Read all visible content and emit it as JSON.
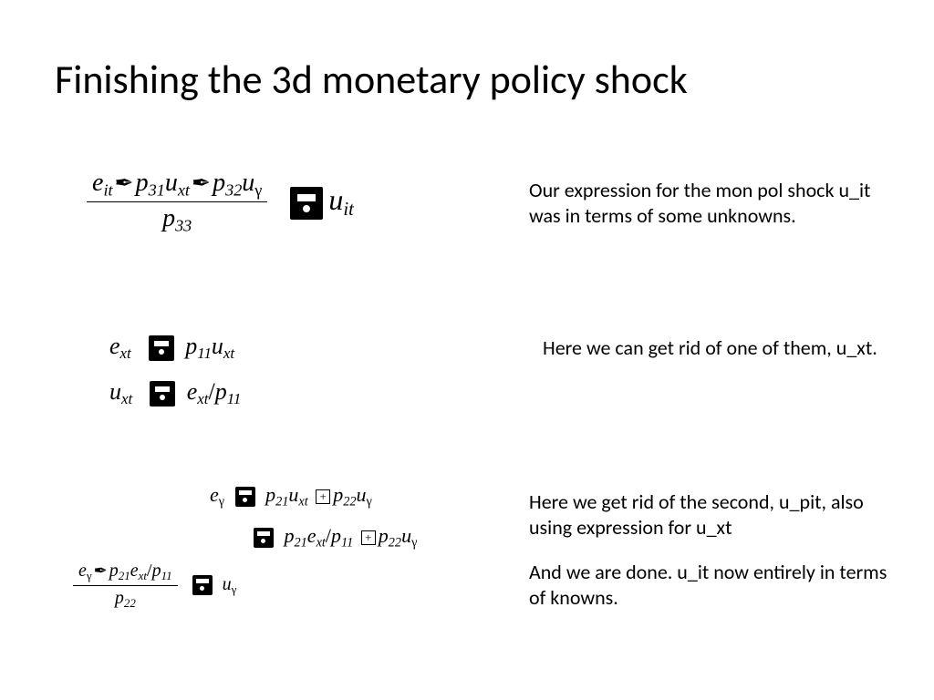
{
  "title": "Finishing the 3d monetary policy shock",
  "colors": {
    "bg": "#ffffff",
    "text": "#000000"
  },
  "fonts": {
    "title_size": 44,
    "body_size": 22,
    "math_main": 28,
    "math_small": 22
  },
  "eq1": {
    "num_parts": {
      "a": "e",
      "a_sub": "it",
      "b": "p",
      "b_sub": "31",
      "c": "u",
      "c_sub": "xt",
      "d": "p",
      "d_sub": "32",
      "e": "u"
    },
    "den": {
      "v": "p",
      "sub": "33"
    },
    "rhs": {
      "v": "u",
      "sub": "it"
    }
  },
  "text1": "Our expression for the mon pol shock u_it was in terms of some unknowns.",
  "eq2a": {
    "lhs": {
      "v": "e",
      "sub": "xt"
    },
    "rhs1": {
      "v": "p",
      "sub": "11"
    },
    "rhs2": {
      "v": "u",
      "sub": "xt"
    }
  },
  "eq2b": {
    "lhs": {
      "v": "u",
      "sub": "xt"
    },
    "rhs1": {
      "v": "e",
      "sub": "xt"
    },
    "rhs2": {
      "v": "p",
      "sub": "11"
    }
  },
  "text2": "Here we can get rid of one of them, u_xt.",
  "eq3a": {
    "lhs": {
      "v": "e"
    },
    "t1": {
      "v": "p",
      "sub": "21"
    },
    "t2": {
      "v": "u",
      "sub": "xt"
    },
    "t3": {
      "v": "p",
      "sub": "22"
    },
    "t4": {
      "v": "u"
    }
  },
  "eq3b": {
    "t1": {
      "v": "p",
      "sub": "21"
    },
    "t2": {
      "v": "e",
      "sub": "xt"
    },
    "t3": {
      "v": "p",
      "sub": "11"
    },
    "t4": {
      "v": "p",
      "sub": "22"
    },
    "t5": {
      "v": "u"
    }
  },
  "eq3c": {
    "num": {
      "a": {
        "v": "e"
      },
      "b": {
        "v": "p",
        "sub": "21"
      },
      "c": {
        "v": "e",
        "sub": "xt"
      },
      "d": {
        "v": "p",
        "sub": "11"
      }
    },
    "den": {
      "v": "p",
      "sub": "22"
    },
    "rhs": {
      "v": "u"
    }
  },
  "text3a": "Here we get rid of the second, u_pit, also using expression for u_xt",
  "text3b": "And we are done.  u_it now entirely in terms of knowns."
}
